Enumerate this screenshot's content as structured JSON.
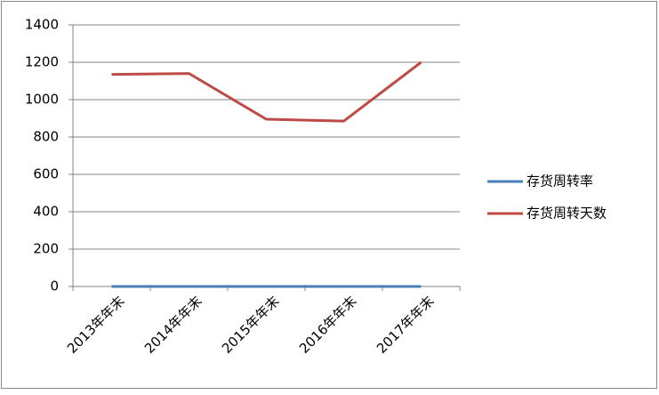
{
  "chart_data": {
    "type": "line",
    "categories": [
      "2013年年末",
      "2014年年末",
      "2015年年末",
      "2016年年末",
      "2017年年末"
    ],
    "series": [
      {
        "name": "存货周转率",
        "color": "#4a7ebb",
        "values": [
          0,
          0,
          0,
          0,
          0
        ]
      },
      {
        "name": "存货周转天数",
        "color": "#be4b48",
        "values": [
          1135,
          1140,
          895,
          885,
          1200
        ]
      }
    ],
    "ylim": [
      0,
      1400
    ],
    "yticks": [
      0,
      200,
      400,
      600,
      800,
      1000,
      1200,
      1400
    ],
    "grid": true,
    "legend": "right"
  }
}
